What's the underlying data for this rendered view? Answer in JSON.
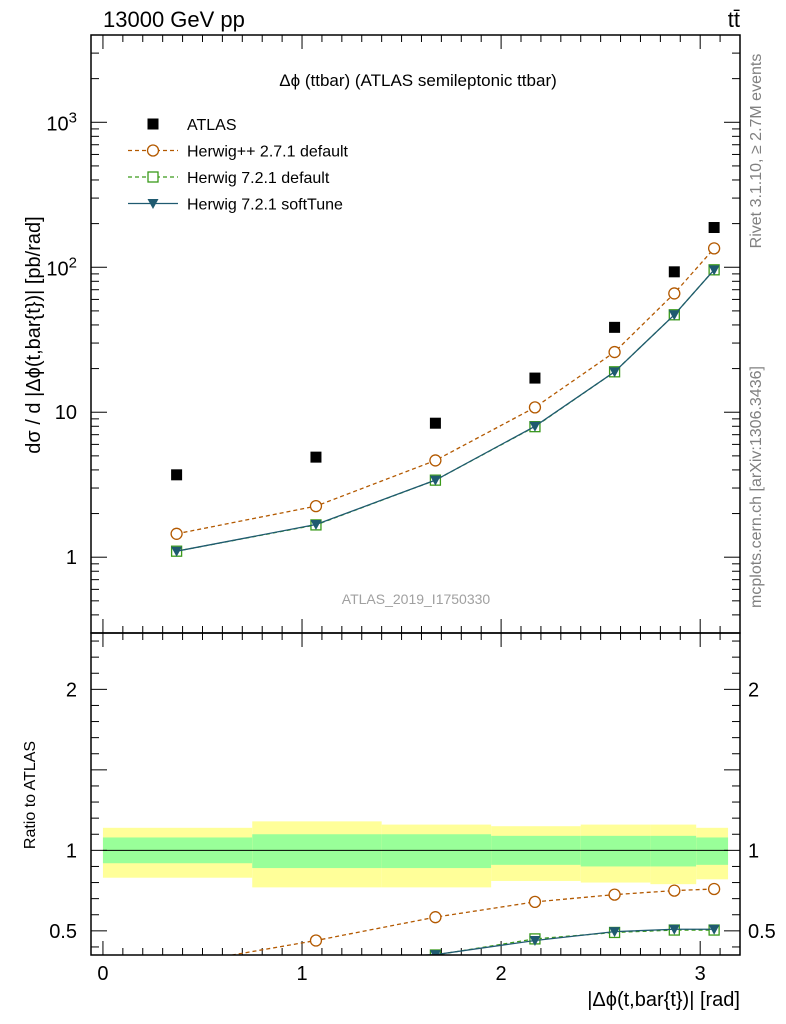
{
  "header": {
    "left": "13000 GeV pp",
    "right": "tt̄"
  },
  "side_labels": {
    "rivet": "Rivet 3.1.10, ≥ 2.7M events",
    "mcplots": "mcplots.cern.ch [arXiv:1306.3436]"
  },
  "chart_data": [
    {
      "type": "scatter",
      "title": "Δϕ (ttbar) (ATLAS semileptonic ttbar)",
      "ylabel": "dσ / d |Δϕ(t,bar{t})| [pb/rad]",
      "yscale": "log",
      "xlim": [
        -0.06,
        3.2
      ],
      "ylim": [
        0.3,
        4000
      ],
      "yticks": [
        {
          "value": 1,
          "label": "1"
        },
        {
          "value": 10,
          "label": "10"
        },
        {
          "value": 100,
          "label": "10²"
        },
        {
          "value": 1000,
          "label": "10³"
        }
      ],
      "watermark": "ATLAS_2019_I1750330",
      "legend_position": "top-left",
      "series": [
        {
          "name": "ATLAS",
          "style": "data",
          "color": "#000000",
          "x": [
            0.37,
            1.07,
            1.67,
            2.17,
            2.57,
            2.87,
            3.07
          ],
          "y": [
            3.7,
            4.9,
            8.4,
            17.2,
            38.5,
            93,
            188
          ]
        },
        {
          "name": "Herwig++ 2.7.1 default",
          "style": "circle-dashed",
          "color": "#b35900",
          "x": [
            0.37,
            1.07,
            1.67,
            2.17,
            2.57,
            2.87,
            3.07
          ],
          "y": [
            1.45,
            2.25,
            4.65,
            10.8,
            26,
            66,
            135
          ]
        },
        {
          "name": "Herwig 7.2.1 default",
          "style": "square-dashed",
          "color": "#3a9a1a",
          "x": [
            0.37,
            1.07,
            1.67,
            2.17,
            2.57,
            2.87,
            3.07
          ],
          "y": [
            1.1,
            1.67,
            3.4,
            7.95,
            19,
            47,
            96
          ]
        },
        {
          "name": "Herwig 7.2.1 softTune",
          "style": "triangle-solid",
          "color": "#1f5a70",
          "x": [
            0.37,
            1.07,
            1.67,
            2.17,
            2.57,
            2.87,
            3.07
          ],
          "y": [
            1.1,
            1.68,
            3.4,
            8.0,
            19,
            47,
            96
          ]
        }
      ]
    },
    {
      "type": "line",
      "ylabel": "Ratio to ATLAS",
      "xlabel": "|Δϕ(t,bar{t})| [rad]",
      "xlim": [
        -0.06,
        3.2
      ],
      "ylim": [
        0.35,
        2.35
      ],
      "xticks": [
        0,
        1,
        2,
        3
      ],
      "yticks": [
        0.5,
        1,
        2
      ],
      "bands": {
        "edges": [
          0,
          0.75,
          1.4,
          1.95,
          2.4,
          2.75,
          2.98,
          3.14
        ],
        "outer": [
          [
            0.83,
            1.14
          ],
          [
            0.77,
            1.18
          ],
          [
            0.77,
            1.16
          ],
          [
            0.81,
            1.15
          ],
          [
            0.8,
            1.16
          ],
          [
            0.79,
            1.16
          ],
          [
            0.82,
            1.14
          ],
          [
            0.85,
            1.13
          ]
        ],
        "inner": [
          [
            0.92,
            1.08
          ],
          [
            0.89,
            1.1
          ],
          [
            0.89,
            1.1
          ],
          [
            0.91,
            1.09
          ],
          [
            0.9,
            1.09
          ],
          [
            0.9,
            1.09
          ],
          [
            0.91,
            1.08
          ],
          [
            0.92,
            1.07
          ]
        ],
        "outer_color": "#ffff99",
        "inner_color": "#99ff99"
      },
      "series": [
        {
          "name": "Herwig++ 2.7.1 default",
          "style": "circle-dashed",
          "color": "#b35900",
          "x": [
            0.37,
            1.07,
            1.67,
            2.17,
            2.57,
            2.87,
            3.07
          ],
          "y": [
            0.29,
            0.44,
            0.585,
            0.68,
            0.725,
            0.75,
            0.76
          ]
        },
        {
          "name": "Herwig 7.2.1 default",
          "style": "square-dashed",
          "color": "#3a9a1a",
          "x": [
            0.37,
            1.07,
            1.67,
            2.17,
            2.57,
            2.87,
            3.07
          ],
          "y": [
            0.2,
            0.32,
            0.35,
            0.45,
            0.49,
            0.505,
            0.505
          ]
        },
        {
          "name": "Herwig 7.2.1 softTune",
          "style": "triangle-solid",
          "color": "#1f5a70",
          "x": [
            0.37,
            1.07,
            1.67,
            2.17,
            2.57,
            2.87,
            3.07
          ],
          "y": [
            0.2,
            0.32,
            0.352,
            0.44,
            0.495,
            0.51,
            0.51
          ]
        }
      ]
    }
  ]
}
